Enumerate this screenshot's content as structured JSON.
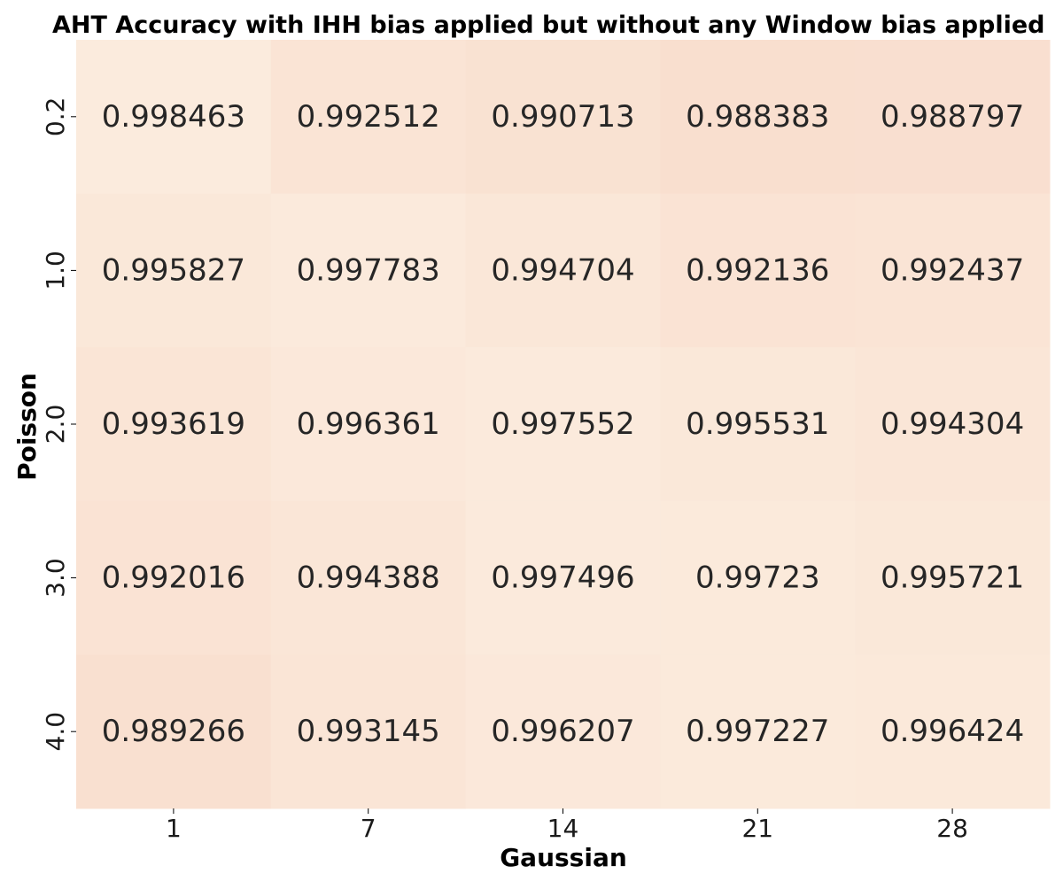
{
  "chart_data": {
    "type": "heatmap",
    "title": "AHT Accuracy with IHH bias applied but without any Window bias applied",
    "xlabel": "Gaussian",
    "ylabel": "Poisson",
    "x_categories": [
      "1",
      "7",
      "14",
      "21",
      "28"
    ],
    "y_categories": [
      "0.2",
      "1.0",
      "2.0",
      "3.0",
      "4.0"
    ],
    "values": [
      [
        "0.998463",
        "0.992512",
        "0.990713",
        "0.988383",
        "0.988797"
      ],
      [
        "0.995827",
        "0.997783",
        "0.994704",
        "0.992136",
        "0.992437"
      ],
      [
        "0.993619",
        "0.996361",
        "0.997552",
        "0.995531",
        "0.994304"
      ],
      [
        "0.992016",
        "0.994388",
        "0.997496",
        "0.99723",
        "0.995721"
      ],
      [
        "0.989266",
        "0.993145",
        "0.996207",
        "0.997227",
        "0.996424"
      ]
    ],
    "value_range": [
      0.988383,
      0.998463
    ],
    "colormap": {
      "low": "#f9dfcf",
      "high": "#fbebdd"
    },
    "colorbar": false,
    "grid": false
  }
}
